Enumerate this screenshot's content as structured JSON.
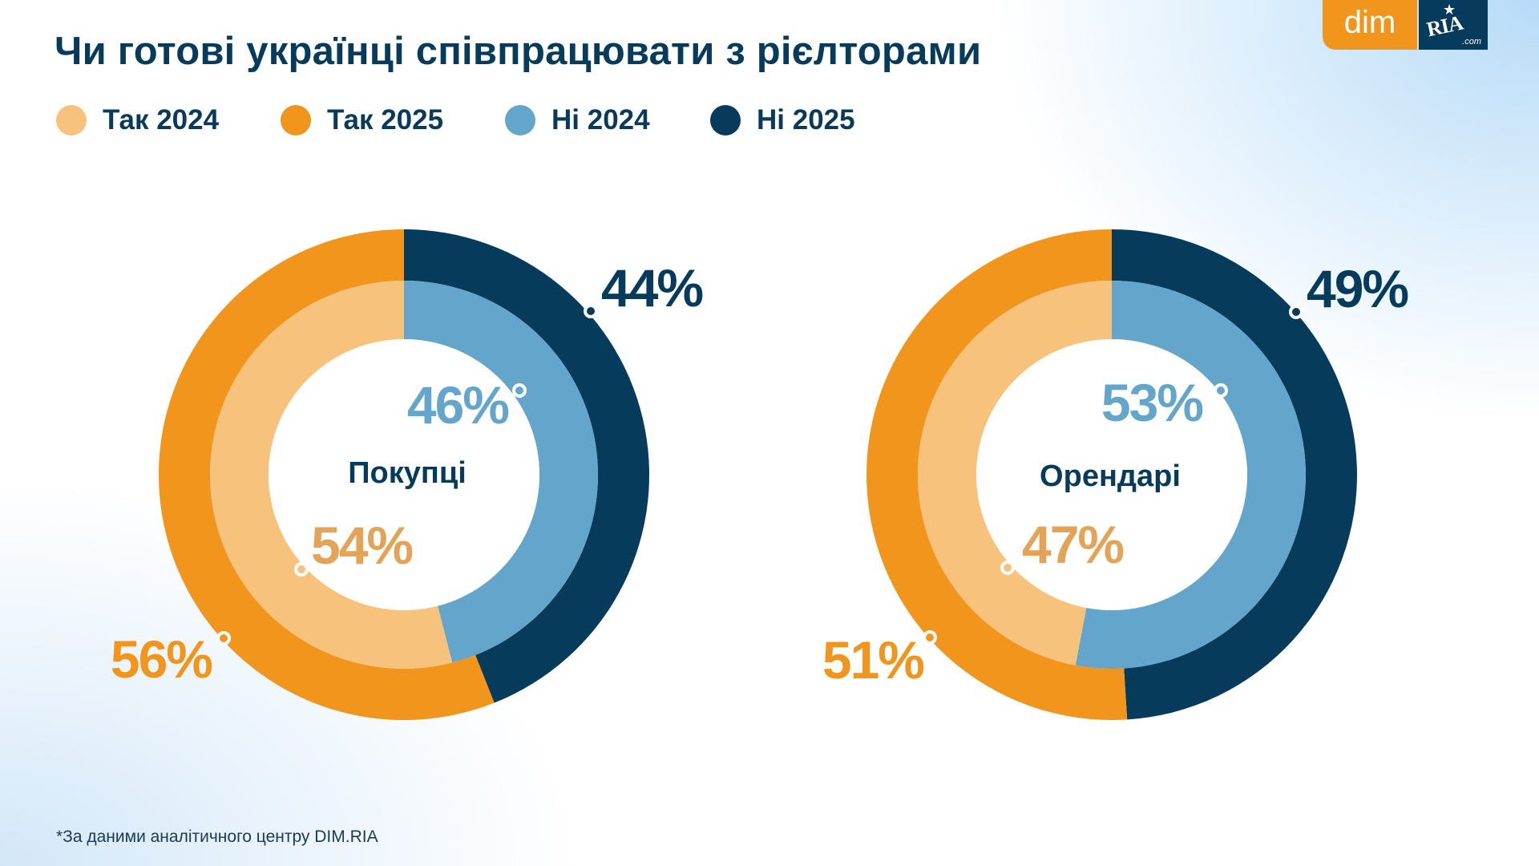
{
  "title": "Чи готові українці співпрацювати з рієлторами",
  "logo": {
    "left_text": "dim",
    "right_text": "RIA",
    "right_subtext": ".com",
    "star": "★"
  },
  "legend": [
    {
      "label": "Так 2024",
      "color": "#f7c27c"
    },
    {
      "label": "Так 2025",
      "color": "#f1951c"
    },
    {
      "label": "Ні 2024",
      "color": "#64a6cb"
    },
    {
      "label": "Ні 2025",
      "color": "#073b5c"
    }
  ],
  "footer": "*За даними аналітичного центру DIM.RIA",
  "colors": {
    "yes_2024": "#f7c27c",
    "yes_2025": "#f1951c",
    "no_2024": "#64a6cb",
    "no_2025": "#073b5c",
    "yes_2024_label": "#e3a457",
    "yes_2025_label": "#f1951c",
    "no_2024_label": "#64a6cb",
    "no_2025_label": "#073b5c",
    "center_label": "#073b5c"
  },
  "chart_data": [
    {
      "type": "pie",
      "subtype": "nested-donut",
      "title": "Покупці",
      "series": [
        {
          "name": "2025 (outer ring)",
          "labels": [
            "Ні 2025",
            "Так 2025"
          ],
          "values": [
            44,
            56
          ],
          "display": [
            "44%",
            "56%"
          ]
        },
        {
          "name": "2024 (inner ring)",
          "labels": [
            "Ні 2024",
            "Так 2024"
          ],
          "values": [
            46,
            54
          ],
          "display": [
            "46%",
            "54%"
          ]
        }
      ]
    },
    {
      "type": "pie",
      "subtype": "nested-donut",
      "title": "Орендарі",
      "series": [
        {
          "name": "2025 (outer ring)",
          "labels": [
            "Ні 2025",
            "Так 2025"
          ],
          "values": [
            49,
            51
          ],
          "display": [
            "49%",
            "51%"
          ]
        },
        {
          "name": "2024 (inner ring)",
          "labels": [
            "Ні 2024",
            "Так 2024"
          ],
          "values": [
            53,
            47
          ],
          "display": [
            "53%",
            "47%"
          ]
        }
      ]
    }
  ]
}
